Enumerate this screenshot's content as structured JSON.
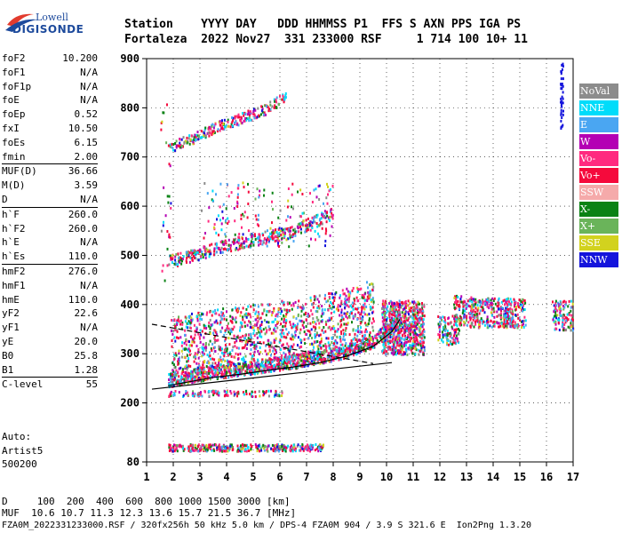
{
  "header": {
    "line1": "Station    YYYY DAY   DDD HHMMSS P1  FFS S AXN PPS IGA PS",
    "line2": "Fortaleza  2022 Nov27  331 233000 RSF     1 714 100 10+ 11"
  },
  "logo": {
    "brand": "Lowell",
    "sub": "DIGISONDE"
  },
  "params": [
    {
      "name": "foF2",
      "value": "10.200"
    },
    {
      "name": "foF1",
      "value": "N/A"
    },
    {
      "name": "foF1p",
      "value": "N/A"
    },
    {
      "name": "foE",
      "value": "N/A"
    },
    {
      "name": "foEp",
      "value": "0.52"
    },
    {
      "name": "fxI",
      "value": "10.50"
    },
    {
      "name": "foEs",
      "value": "6.15"
    },
    {
      "name": "fmin",
      "value": "2.00"
    },
    {
      "name": "MUF(D)",
      "value": "36.66",
      "sep": true
    },
    {
      "name": "M(D)",
      "value": "3.59"
    },
    {
      "name": "D",
      "value": "N/A"
    },
    {
      "name": "h`F",
      "value": "260.0",
      "sep": true
    },
    {
      "name": "h`F2",
      "value": "260.0"
    },
    {
      "name": "h`E",
      "value": "N/A"
    },
    {
      "name": "h`Es",
      "value": "110.0"
    },
    {
      "name": "hmF2",
      "value": "276.0",
      "sep": true
    },
    {
      "name": "hmF1",
      "value": "N/A"
    },
    {
      "name": "hmE",
      "value": "110.0"
    },
    {
      "name": "yF2",
      "value": "22.6"
    },
    {
      "name": "yF1",
      "value": "N/A"
    },
    {
      "name": "yE",
      "value": "20.0"
    },
    {
      "name": "B0",
      "value": "25.8"
    },
    {
      "name": "B1",
      "value": "1.28"
    },
    {
      "name": "C-level",
      "value": "55",
      "sep": true
    }
  ],
  "autoscale": "Auto:\nArtist5\n500200",
  "footer": {
    "line1": "D     100  200  400  600  800 1000 1500 3000 [km]",
    "line2": "MUF  10.6 10.7 11.3 12.3 13.6 15.7 21.5 36.7 [MHz]",
    "line3": "FZA0M_2022331233000.RSF / 320fx256h 50 kHz 5.0 km / DPS-4 FZA0M 904 / 3.9 S 321.6 E  Ion2Png 1.3.20"
  },
  "legend": [
    {
      "label": "NoVal",
      "color": "#8c8c8c"
    },
    {
      "label": "NNE",
      "color": "#00dcfa"
    },
    {
      "label": "E",
      "color": "#4aa6f2"
    },
    {
      "label": "W",
      "color": "#b400b4"
    },
    {
      "label": "Vo-",
      "color": "#ff2a7f"
    },
    {
      "label": "Vo+",
      "color": "#f50a3c"
    },
    {
      "label": "SSW",
      "color": "#f5aaaa"
    },
    {
      "label": "X-",
      "color": "#0a8214"
    },
    {
      "label": "X+",
      "color": "#6ab45a"
    },
    {
      "label": "SSE",
      "color": "#d2d21e"
    },
    {
      "label": "NNW",
      "color": "#1414dc"
    }
  ],
  "chart_data": {
    "type": "scatter",
    "xlabel": "",
    "ylabel": "",
    "xlim": [
      1,
      17
    ],
    "ylim": [
      80,
      900
    ],
    "x_ticks": [
      "1",
      "2",
      "3",
      "4",
      "5",
      "6",
      "7",
      "8",
      "9",
      "10",
      "11",
      "12",
      "13",
      "14",
      "15",
      "16",
      "17"
    ],
    "y_ticks": [
      "80",
      "200",
      "300",
      "400",
      "500",
      "600",
      "700",
      "800",
      "900"
    ],
    "traces": [
      {
        "name": "F2 O-trace",
        "points": [
          [
            1.8,
            245
          ],
          [
            2.5,
            252
          ],
          [
            3.5,
            262
          ],
          [
            4.5,
            268
          ],
          [
            5.5,
            276
          ],
          [
            6.5,
            283
          ],
          [
            7.5,
            292
          ],
          [
            8.5,
            305
          ],
          [
            9.5,
            325
          ],
          [
            10.2,
            355
          ],
          [
            10.5,
            380
          ]
        ]
      },
      {
        "name": "F2 second hop",
        "points": [
          [
            1.8,
            490
          ],
          [
            2.5,
            498
          ],
          [
            3.5,
            515
          ],
          [
            4.5,
            528
          ],
          [
            5.5,
            540
          ],
          [
            6.5,
            552
          ],
          [
            7.5,
            575
          ],
          [
            8.0,
            590
          ]
        ]
      },
      {
        "name": "F2 third hop",
        "points": [
          [
            1.8,
            720
          ],
          [
            2.5,
            735
          ],
          [
            3.5,
            760
          ],
          [
            4.5,
            780
          ],
          [
            5.5,
            800
          ],
          [
            6.2,
            825
          ]
        ]
      },
      {
        "name": "Es",
        "points": [
          [
            1.8,
            110
          ],
          [
            3,
            110
          ],
          [
            4,
            110
          ],
          [
            5,
            110
          ],
          [
            6,
            110
          ],
          [
            7,
            110
          ],
          [
            7.5,
            110
          ]
        ]
      },
      {
        "name": "Spread F",
        "points": [
          [
            10.0,
            360
          ],
          [
            10.5,
            370
          ],
          [
            11.0,
            375
          ],
          [
            11.5,
            370
          ],
          [
            13,
            390
          ],
          [
            14,
            390
          ],
          [
            14.5,
            385
          ],
          [
            16.5,
            380
          ]
        ]
      }
    ]
  }
}
